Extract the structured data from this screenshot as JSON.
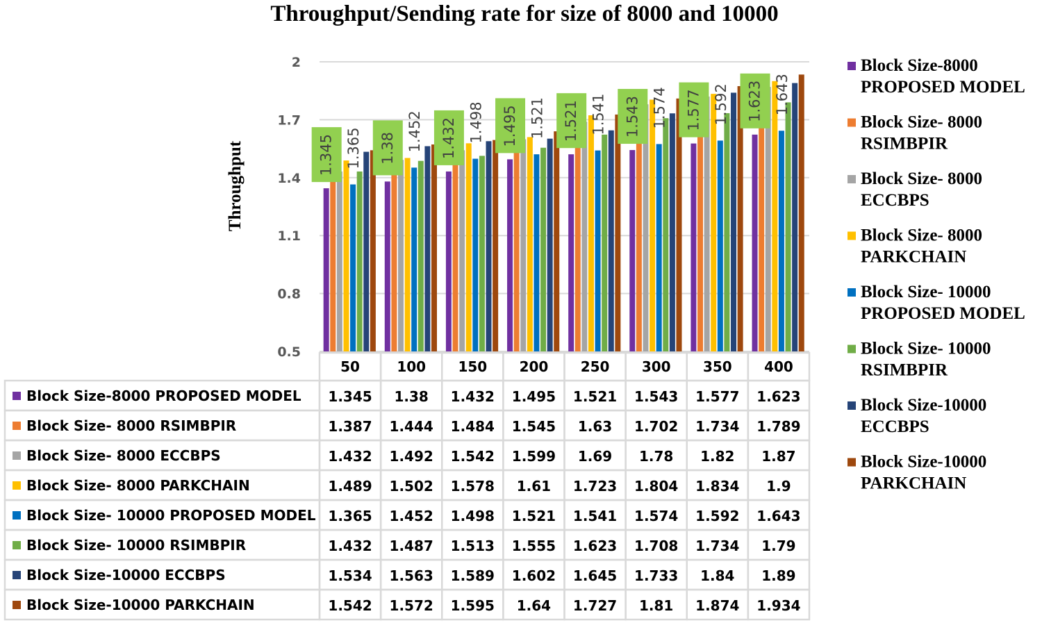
{
  "chart_data": {
    "type": "bar",
    "title": "Throughput/Sending rate for size of 8000 and 10000",
    "xlabel": "",
    "ylabel": "Throughput",
    "ylim": [
      0.5,
      2
    ],
    "yticks": [
      "0.5",
      "0.8",
      "1.1",
      "1.4",
      "1.7",
      "2"
    ],
    "grid": true,
    "legend_position": "right",
    "categories": [
      "50",
      "100",
      "150",
      "200",
      "250",
      "300",
      "350",
      "400"
    ],
    "series": [
      {
        "name": "Block Size-8000 PROPOSED MODEL",
        "legend": [
          "Block Size-8000",
          "PROPOSED MODEL"
        ],
        "color": "#7030a0",
        "values": [
          1.345,
          1.38,
          1.432,
          1.495,
          1.521,
          1.543,
          1.577,
          1.623
        ],
        "labels": [
          "1.345",
          "1.38",
          "1.432",
          "1.495",
          "1.521",
          "1.543",
          "1.577",
          "1.623"
        ],
        "label_style": "boxed"
      },
      {
        "name": "Block Size- 8000 RSIMBPIR",
        "legend": [
          "Block Size- 8000",
          "RSIMBPIR"
        ],
        "color": "#ed7d31",
        "values": [
          1.387,
          1.444,
          1.484,
          1.545,
          1.63,
          1.702,
          1.734,
          1.789
        ],
        "labels": [
          "1.387",
          "1.444",
          "1.484",
          "1.545",
          "1.63",
          "1.702",
          "1.734",
          "1.789"
        ]
      },
      {
        "name": "Block Size- 8000 ECCBPS",
        "legend": [
          "Block Size- 8000",
          "ECCBPS"
        ],
        "color": "#a5a5a5",
        "values": [
          1.432,
          1.492,
          1.542,
          1.599,
          1.69,
          1.78,
          1.82,
          1.87
        ],
        "labels": [
          "1.432",
          "1.492",
          "1.542",
          "1.599",
          "1.69",
          "1.78",
          "1.82",
          "1.87"
        ]
      },
      {
        "name": "Block Size- 8000 PARKCHAIN",
        "legend": [
          "Block Size- 8000",
          "PARKCHAIN"
        ],
        "color": "#ffc000",
        "values": [
          1.489,
          1.502,
          1.578,
          1.61,
          1.723,
          1.804,
          1.834,
          1.9
        ],
        "labels": [
          "1.489",
          "1.502",
          "1.578",
          "1.61",
          "1.723",
          "1.804",
          "1.834",
          "1.9"
        ]
      },
      {
        "name": "Block Size- 10000 PROPOSED MODEL",
        "legend": [
          "Block Size- 10000",
          "PROPOSED MODEL"
        ],
        "color": "#0070c0",
        "values": [
          1.365,
          1.452,
          1.498,
          1.521,
          1.541,
          1.574,
          1.592,
          1.643
        ],
        "labels": [
          "1.365",
          "1.452",
          "1.498",
          "1.521",
          "1.541",
          "1.574",
          "1.592",
          "1.643"
        ],
        "label_style": "rotated"
      },
      {
        "name": "Block Size- 10000 RSIMBPIR",
        "legend": [
          "Block Size- 10000",
          "RSIMBPIR"
        ],
        "color": "#70ad47",
        "values": [
          1.432,
          1.487,
          1.513,
          1.555,
          1.623,
          1.708,
          1.734,
          1.79
        ],
        "labels": [
          "1.432",
          "1.487",
          "1.513",
          "1.555",
          "1.623",
          "1.708",
          "1.734",
          "1.79"
        ]
      },
      {
        "name": "Block Size-10000 ECCBPS",
        "legend": [
          "Block Size-10000",
          "ECCBPS"
        ],
        "color": "#264478",
        "values": [
          1.534,
          1.563,
          1.589,
          1.602,
          1.645,
          1.733,
          1.84,
          1.89
        ],
        "labels": [
          "1.534",
          "1.563",
          "1.589",
          "1.602",
          "1.645",
          "1.733",
          "1.84",
          "1.89"
        ]
      },
      {
        "name": "Block Size-10000 PARKCHAIN",
        "legend": [
          "Block Size-10000",
          "PARKCHAIN"
        ],
        "color": "#9e480e",
        "values": [
          1.542,
          1.572,
          1.595,
          1.64,
          1.727,
          1.81,
          1.874,
          1.934
        ],
        "labels": [
          "1.542",
          "1.572",
          "1.595",
          "1.64",
          "1.727",
          "1.81",
          "1.874",
          "1.934"
        ]
      }
    ],
    "data_label_box_color": "#92d050"
  }
}
